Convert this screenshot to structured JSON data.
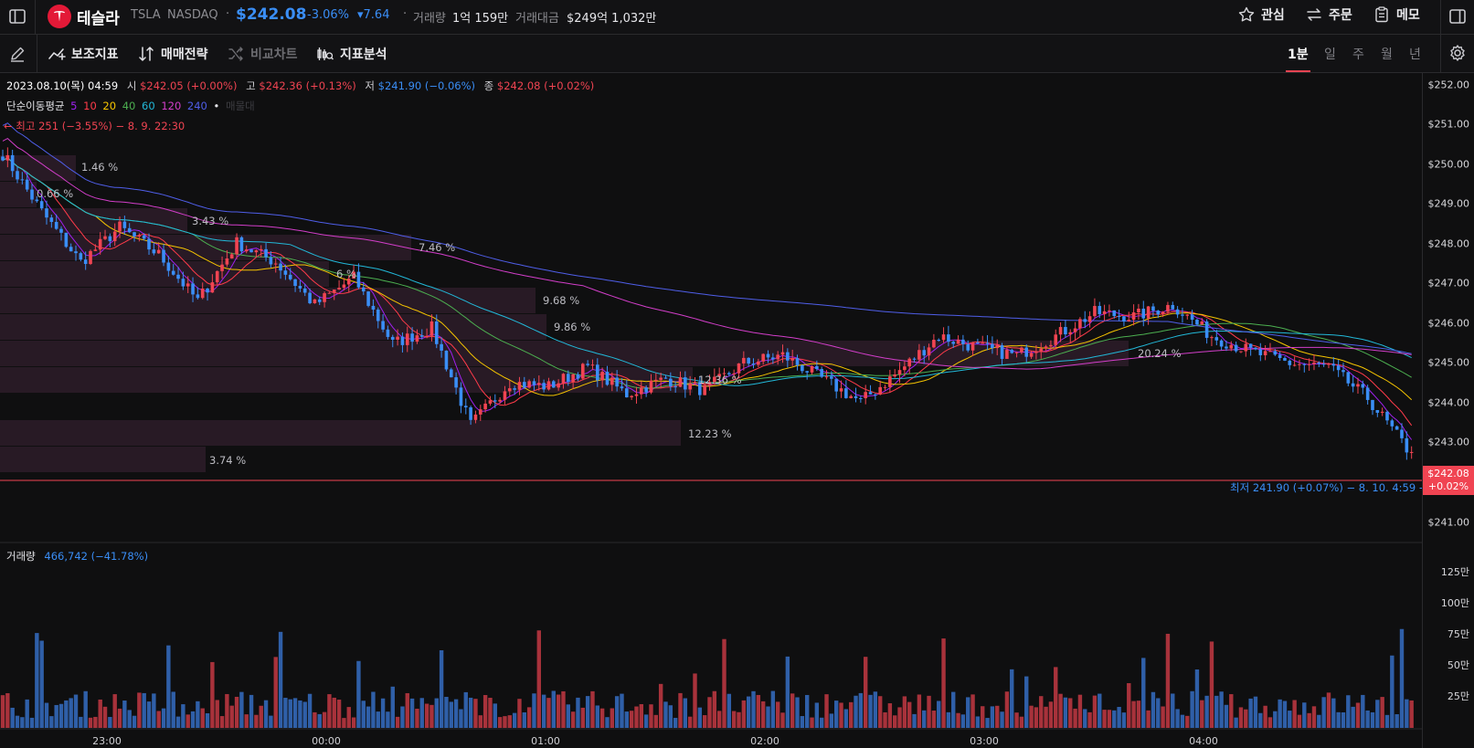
{
  "header": {
    "company": "테슬라",
    "ticker": "TSLA",
    "exchange": "NASDAQ",
    "dot": "·",
    "price": "$242.08",
    "change_pct": "-3.06%",
    "change_abs": "▾7.64",
    "volume_label": "거래량",
    "volume_value": "1억 159만",
    "trade_value_label": "거래대금",
    "trade_value": "$249억 1,032만",
    "actions": {
      "watch": "관심",
      "order": "주문",
      "memo": "메모"
    }
  },
  "toolbar": {
    "indicators": "보조지표",
    "strategy": "매매전략",
    "compare": "비교차트",
    "analysis": "지표분석",
    "timeframes": [
      "1분",
      "일",
      "주",
      "월",
      "년"
    ],
    "active_timeframe": "1분"
  },
  "ohlc": {
    "date": "2023.08.10(목) 04:59",
    "open_label": "시",
    "open": "$242.05 (+0.00%)",
    "high_label": "고",
    "high": "$242.36 (+0.13%)",
    "low_label": "저",
    "low": "$241.90 (−0.06%)",
    "close_label": "종",
    "close": "$242.08 (+0.02%)"
  },
  "ma_legend": {
    "label": "단순이동평균",
    "periods": [
      "5",
      "10",
      "20",
      "40",
      "60",
      "120",
      "240"
    ],
    "colors": [
      "#a020f0",
      "#ff3b4a",
      "#f5c400",
      "#4caf50",
      "#22b8d8",
      "#d23ec9",
      "#4f5ee8"
    ],
    "extra": "매물대"
  },
  "markers": {
    "high": "← 최고 251 (−3.55%) − 8. 9. 22:30",
    "low": "최저 241.90 (+0.07%) − 8. 10. 4:59 →"
  },
  "volume_legend": {
    "label": "거래량",
    "value": "466,742 (−41.78%)"
  },
  "price_axis": [
    "$252.00",
    "$251.00",
    "$250.00",
    "$249.00",
    "$248.00",
    "$247.00",
    "$246.00",
    "$245.00",
    "$244.00",
    "$243.00",
    "$241.00"
  ],
  "current_price_tag": {
    "price": "$242.08",
    "change": "+0.02%"
  },
  "volume_axis": [
    "125만",
    "100만",
    "75만",
    "50만",
    "25만"
  ],
  "time_axis": [
    "23:00",
    "00:00",
    "01:00",
    "02:00",
    "03:00",
    "04:00"
  ],
  "volume_profile": [
    "1.46 %",
    "0.66 %",
    "3.43 %",
    "7.46 %",
    "6 %",
    "9.68 %",
    "9.86 %",
    "20.24 %",
    "12.36 %",
    "12.23 %",
    "3.74 %"
  ],
  "colors": {
    "up": "#f04452",
    "down": "#3a8ef6",
    "accent": "#f04452"
  },
  "chart_data": {
    "type": "candlestick",
    "interval": "1m",
    "yrange": [
      240.5,
      252.2
    ],
    "close_path": [
      [
        0,
        250.1
      ],
      [
        8,
        248.6
      ],
      [
        16,
        247.3
      ],
      [
        24,
        248.2
      ],
      [
        32,
        247.5
      ],
      [
        40,
        246.3
      ],
      [
        48,
        247.8
      ],
      [
        56,
        247.3
      ],
      [
        64,
        246.2
      ],
      [
        72,
        246.9
      ],
      [
        80,
        245.2
      ],
      [
        88,
        245.6
      ],
      [
        96,
        243.1
      ],
      [
        104,
        244.2
      ],
      [
        112,
        244.1
      ],
      [
        120,
        244.6
      ],
      [
        128,
        243.9
      ],
      [
        136,
        244.3
      ],
      [
        144,
        244.0
      ],
      [
        152,
        244.7
      ],
      [
        160,
        244.9
      ],
      [
        168,
        244.3
      ],
      [
        176,
        243.7
      ],
      [
        184,
        244.5
      ],
      [
        192,
        245.4
      ],
      [
        200,
        245.1
      ],
      [
        208,
        244.9
      ],
      [
        216,
        245.4
      ],
      [
        224,
        246.0
      ],
      [
        232,
        245.9
      ],
      [
        240,
        246.2
      ],
      [
        248,
        245.4
      ],
      [
        256,
        245.0
      ],
      [
        264,
        244.7
      ],
      [
        272,
        244.6
      ],
      [
        280,
        243.8
      ],
      [
        288,
        242.5
      ]
    ]
  }
}
